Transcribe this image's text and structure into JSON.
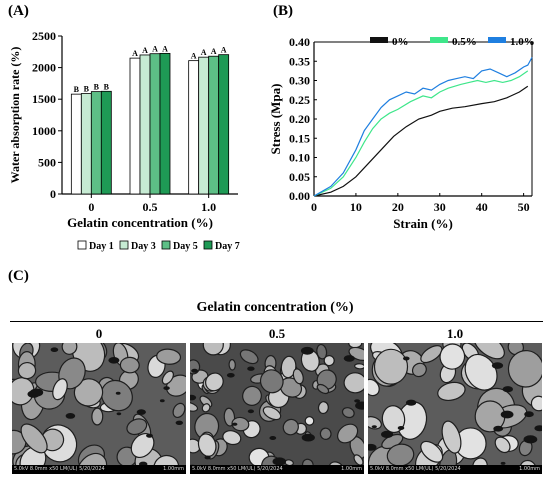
{
  "panels": {
    "a_label": "(A)",
    "b_label": "(B)",
    "c_label": "(C)"
  },
  "chart_data": [
    {
      "type": "bar",
      "ylabel": "Water absorption rate (%)",
      "xlabel": "Gelatin concentration (%)",
      "categories": [
        "0",
        "0.5",
        "1.0"
      ],
      "ylim": [
        0,
        2500
      ],
      "yticks": [
        0,
        500,
        1000,
        1500,
        2000,
        2500
      ],
      "series": [
        {
          "name": "Day 1",
          "values": [
            1580,
            2150,
            2110
          ],
          "color": "#ffffff"
        },
        {
          "name": "Day 3",
          "values": [
            1590,
            2200,
            2165
          ],
          "color": "#c6ebd3"
        },
        {
          "name": "Day 5",
          "values": [
            1620,
            2220,
            2180
          ],
          "color": "#5dbf86"
        },
        {
          "name": "Day 7",
          "values": [
            1625,
            2225,
            2205
          ],
          "color": "#1e9a55"
        }
      ],
      "significance_labels": [
        [
          "B",
          "B",
          "B",
          "B"
        ],
        [
          "A",
          "A",
          "A",
          "A"
        ],
        [
          "A",
          "A",
          "A",
          "A"
        ]
      ],
      "legend_position": "bottom"
    },
    {
      "type": "line",
      "ylabel": "Stress (Mpa)",
      "xlabel": "Strain (%)",
      "xlim": [
        0,
        52
      ],
      "ylim": [
        0,
        0.4
      ],
      "xticks": [
        0,
        10,
        20,
        30,
        40,
        50
      ],
      "yticks": [
        0,
        0.05,
        0.1,
        0.15,
        0.2,
        0.25,
        0.3,
        0.35,
        0.4
      ],
      "legend_position": "top-right",
      "series": [
        {
          "name": "0%",
          "color": "#111111",
          "points": [
            [
              0,
              0
            ],
            [
              4,
              0.01
            ],
            [
              7,
              0.025
            ],
            [
              10,
              0.05
            ],
            [
              13,
              0.085
            ],
            [
              16,
              0.12
            ],
            [
              19,
              0.155
            ],
            [
              22,
              0.18
            ],
            [
              25,
              0.2
            ],
            [
              28,
              0.21
            ],
            [
              30,
              0.22
            ],
            [
              33,
              0.228
            ],
            [
              36,
              0.232
            ],
            [
              40,
              0.24
            ],
            [
              43,
              0.245
            ],
            [
              46,
              0.255
            ],
            [
              49,
              0.27
            ],
            [
              51,
              0.285
            ]
          ]
        },
        {
          "name": "0.5%",
          "color": "#3ee68a",
          "points": [
            [
              0,
              0
            ],
            [
              4,
              0.02
            ],
            [
              7,
              0.05
            ],
            [
              10,
              0.1
            ],
            [
              12,
              0.14
            ],
            [
              14,
              0.175
            ],
            [
              16,
              0.2
            ],
            [
              18,
              0.215
            ],
            [
              20,
              0.225
            ],
            [
              23,
              0.245
            ],
            [
              26,
              0.26
            ],
            [
              28,
              0.255
            ],
            [
              30,
              0.27
            ],
            [
              32,
              0.28
            ],
            [
              35,
              0.29
            ],
            [
              37,
              0.295
            ],
            [
              39,
              0.3
            ],
            [
              41,
              0.295
            ],
            [
              43,
              0.3
            ],
            [
              45,
              0.295
            ],
            [
              47,
              0.3
            ],
            [
              49,
              0.31
            ],
            [
              51,
              0.325
            ]
          ]
        },
        {
          "name": "1.0%",
          "color": "#1f7fe0",
          "points": [
            [
              0,
              0
            ],
            [
              4,
              0.025
            ],
            [
              7,
              0.06
            ],
            [
              10,
              0.12
            ],
            [
              12,
              0.17
            ],
            [
              14,
              0.2
            ],
            [
              16,
              0.23
            ],
            [
              18,
              0.25
            ],
            [
              20,
              0.26
            ],
            [
              22,
              0.27
            ],
            [
              24,
              0.265
            ],
            [
              26,
              0.28
            ],
            [
              28,
              0.275
            ],
            [
              30,
              0.29
            ],
            [
              32,
              0.3
            ],
            [
              34,
              0.305
            ],
            [
              36,
              0.31
            ],
            [
              38,
              0.305
            ],
            [
              40,
              0.325
            ],
            [
              42,
              0.33
            ],
            [
              44,
              0.32
            ],
            [
              46,
              0.31
            ],
            [
              48,
              0.32
            ],
            [
              50,
              0.335
            ],
            [
              51,
              0.34
            ],
            [
              52,
              0.36
            ]
          ]
        }
      ]
    }
  ],
  "sem_section": {
    "title": "Gelatin concentration (%)",
    "columns": [
      "0",
      "0.5",
      "1.0"
    ],
    "info_left": "5.0kV 8.0mm x50 LM(UL) 5/20/2024",
    "info_right": "1.00mm"
  }
}
